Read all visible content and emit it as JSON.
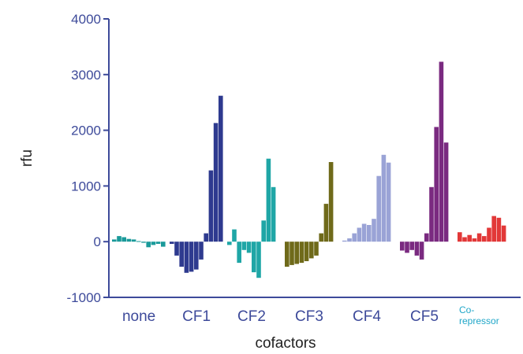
{
  "chart_data": {
    "type": "bar",
    "title": "",
    "xlabel": "cofactors",
    "ylabel": "rfu",
    "ylim": [
      -1000,
      4000
    ],
    "yticks": [
      -1000,
      0,
      1000,
      2000,
      3000,
      4000
    ],
    "yticks_labels": [
      "-1000",
      "0",
      "1000",
      "2000",
      "3000",
      "4000"
    ],
    "grid": false,
    "legend": "none",
    "groups": [
      {
        "label": "none",
        "color": "#1a9a9a",
        "values": [
          40,
          100,
          80,
          50,
          40,
          10,
          -20,
          -100,
          -60,
          -40,
          -90
        ]
      },
      {
        "label": "CF1",
        "color": "#2e3a8f",
        "values": [
          -40,
          -250,
          -450,
          -560,
          -540,
          -500,
          -320,
          150,
          1280,
          2130,
          2620
        ]
      },
      {
        "label": "CF2",
        "color": "#1fa6a6",
        "values": [
          -60,
          220,
          -380,
          -150,
          -200,
          -550,
          -650,
          380,
          1490,
          980
        ]
      },
      {
        "label": "CF3",
        "color": "#6f6a1a",
        "values": [
          -450,
          -420,
          -400,
          -380,
          -350,
          -300,
          -250,
          150,
          680,
          1430
        ]
      },
      {
        "label": "CF4",
        "color": "#9aa3d6",
        "values": [
          20,
          60,
          150,
          250,
          320,
          300,
          410,
          1180,
          1560,
          1420
        ]
      },
      {
        "label": "CF5",
        "color": "#7a2a80",
        "values": [
          -160,
          -200,
          -150,
          -250,
          -320,
          150,
          980,
          2060,
          3230,
          1780
        ]
      },
      {
        "label_lines": [
          "Co-",
          "repressor"
        ],
        "color": "#e23838",
        "values": [
          170,
          80,
          120,
          60,
          150,
          100,
          250,
          460,
          430,
          290
        ]
      }
    ]
  }
}
